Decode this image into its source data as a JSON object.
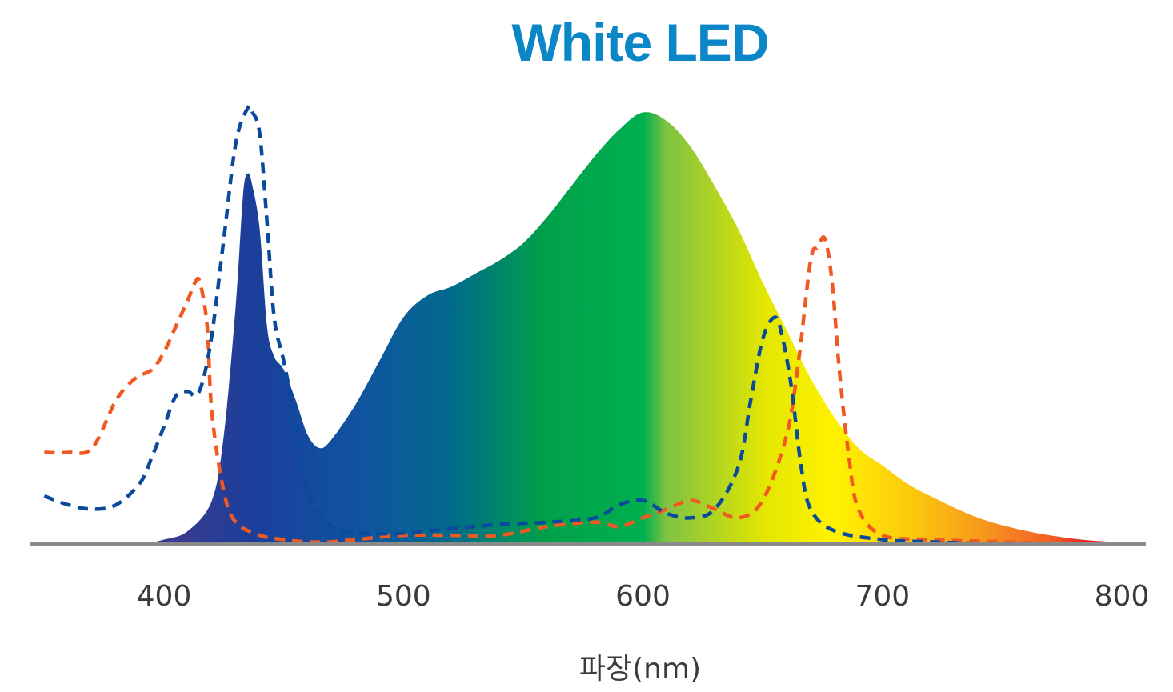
{
  "chart_data": {
    "type": "area",
    "title": "White LED",
    "xlabel": "파장(nm)",
    "ylabel": "",
    "xlim": [
      350,
      810
    ],
    "ylim": [
      0,
      1.0
    ],
    "x_ticks": [
      400,
      500,
      600,
      700,
      800
    ],
    "x_tick_labels": [
      "400",
      "500",
      "600",
      "700",
      "800"
    ],
    "grid": false,
    "legend": "none",
    "colors": {
      "title": "#0b86c6",
      "axis": "#8a8a8a",
      "dashed_orange": "#f05a22",
      "dashed_blue": "#0a4a9c",
      "spectrum_stops": [
        "#3b3a8f",
        "#1a3f9c",
        "#0f55a0",
        "#006b8a",
        "#00a04a",
        "#00b04f",
        "#7fc242",
        "#e4e700",
        "#fff200",
        "#fbc20f",
        "#f7941d",
        "#f15a24",
        "#ed1c24",
        "#e6202a"
      ]
    },
    "series": [
      {
        "style": "filled-spectrum",
        "x": [
          350,
          375,
          390,
          400,
          410,
          420,
          425,
          430,
          433,
          435,
          437,
          440,
          443,
          446,
          450,
          455,
          460,
          465,
          470,
          480,
          490,
          500,
          510,
          520,
          530,
          540,
          550,
          560,
          570,
          580,
          590,
          600,
          610,
          620,
          630,
          640,
          650,
          660,
          670,
          680,
          690,
          700,
          710,
          720,
          740,
          760,
          780,
          795,
          810
        ],
        "values": [
          0.0,
          0.0,
          0.0,
          0.01,
          0.03,
          0.1,
          0.25,
          0.55,
          0.8,
          0.85,
          0.82,
          0.72,
          0.5,
          0.43,
          0.4,
          0.33,
          0.25,
          0.22,
          0.24,
          0.32,
          0.42,
          0.52,
          0.57,
          0.59,
          0.62,
          0.65,
          0.69,
          0.75,
          0.82,
          0.89,
          0.95,
          0.99,
          0.97,
          0.91,
          0.82,
          0.72,
          0.6,
          0.49,
          0.38,
          0.29,
          0.22,
          0.18,
          0.14,
          0.11,
          0.06,
          0.03,
          0.012,
          0.005,
          0.0
        ]
      },
      {
        "style": "dashed-orange",
        "x": [
          350,
          360,
          370,
          380,
          388,
          395,
          400,
          405,
          410,
          413,
          415,
          418,
          420,
          425,
          430,
          440,
          450,
          460,
          470,
          480,
          500,
          520,
          540,
          560,
          580,
          590,
          600,
          610,
          620,
          630,
          640,
          650,
          660,
          665,
          670,
          673,
          676,
          679,
          682,
          686,
          690,
          700,
          720,
          750,
          780,
          810
        ],
        "values": [
          0.21,
          0.21,
          0.22,
          0.33,
          0.38,
          0.4,
          0.44,
          0.5,
          0.56,
          0.6,
          0.6,
          0.5,
          0.3,
          0.12,
          0.05,
          0.02,
          0.01,
          0.005,
          0.005,
          0.01,
          0.02,
          0.02,
          0.02,
          0.04,
          0.05,
          0.04,
          0.06,
          0.08,
          0.1,
          0.08,
          0.06,
          0.1,
          0.25,
          0.42,
          0.65,
          0.68,
          0.7,
          0.6,
          0.4,
          0.2,
          0.08,
          0.02,
          0.01,
          0.005,
          0.0,
          0.0
        ]
      },
      {
        "style": "dashed-blue",
        "x": [
          350,
          360,
          370,
          380,
          390,
          395,
          400,
          405,
          410,
          413,
          416,
          420,
          425,
          430,
          435,
          437,
          440,
          443,
          446,
          450,
          455,
          460,
          470,
          480,
          500,
          520,
          540,
          560,
          580,
          590,
          600,
          610,
          620,
          630,
          640,
          645,
          650,
          655,
          658,
          662,
          666,
          670,
          680,
          700,
          720,
          750,
          780,
          810
        ],
        "values": [
          0.11,
          0.09,
          0.08,
          0.09,
          0.14,
          0.2,
          0.27,
          0.34,
          0.35,
          0.34,
          0.37,
          0.48,
          0.7,
          0.92,
          1.0,
          0.99,
          0.94,
          0.74,
          0.52,
          0.42,
          0.28,
          0.12,
          0.04,
          0.025,
          0.025,
          0.035,
          0.045,
          0.05,
          0.06,
          0.09,
          0.1,
          0.07,
          0.06,
          0.08,
          0.18,
          0.33,
          0.47,
          0.52,
          0.48,
          0.36,
          0.18,
          0.08,
          0.03,
          0.01,
          0.005,
          0.0,
          0.0,
          0.0
        ]
      }
    ]
  }
}
